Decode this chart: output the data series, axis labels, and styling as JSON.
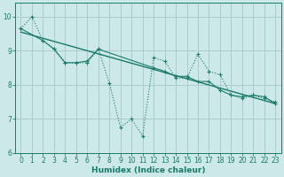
{
  "title": "",
  "xlabel": "Humidex (Indice chaleur)",
  "background_color": "#cce8e8",
  "grid_color": "#aacccc",
  "line_color": "#1a7a6a",
  "xlim": [
    -0.5,
    23.5
  ],
  "ylim": [
    6,
    10.4
  ],
  "yticks": [
    6,
    7,
    8,
    9,
    10
  ],
  "xticks": [
    0,
    1,
    2,
    3,
    4,
    5,
    6,
    7,
    8,
    9,
    10,
    11,
    12,
    13,
    14,
    15,
    16,
    17,
    18,
    19,
    20,
    21,
    22,
    23
  ],
  "series1_x": [
    0,
    1,
    2,
    3,
    4,
    5,
    6,
    7,
    8,
    9,
    10,
    11,
    12,
    13,
    14,
    15,
    16,
    17,
    18,
    19,
    20,
    21,
    22,
    23
  ],
  "series1_y": [
    9.65,
    10.0,
    9.3,
    9.05,
    8.65,
    8.65,
    8.65,
    9.05,
    8.05,
    6.75,
    7.0,
    6.5,
    8.8,
    8.7,
    8.2,
    8.2,
    8.9,
    8.4,
    8.3,
    7.7,
    7.6,
    7.7,
    7.6,
    7.5
  ],
  "series2_x": [
    0,
    2,
    3,
    4,
    5,
    6,
    7,
    12,
    13,
    14,
    15,
    16,
    17,
    18,
    19,
    20,
    21,
    22,
    23
  ],
  "series2_y": [
    9.65,
    9.3,
    9.05,
    8.65,
    8.65,
    8.7,
    9.05,
    8.5,
    8.4,
    8.25,
    8.25,
    8.1,
    8.1,
    7.85,
    7.7,
    7.65,
    7.7,
    7.65,
    7.45
  ],
  "trend_x": [
    0,
    23
  ],
  "trend_y": [
    9.55,
    7.45
  ]
}
